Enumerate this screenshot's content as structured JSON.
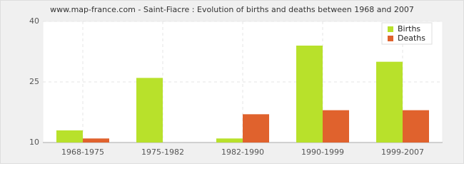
{
  "chart_data": {
    "type": "bar",
    "title": "www.map-france.com - Saint-Fiacre : Evolution of births and deaths between 1968 and 2007",
    "categories": [
      "1968-1975",
      "1975-1982",
      "1982-1990",
      "1990-1999",
      "1999-2007"
    ],
    "series": [
      {
        "name": "Births",
        "color": "#b8e12b",
        "values": [
          13,
          26,
          11,
          34,
          30
        ]
      },
      {
        "name": "Deaths",
        "color": "#e0622d",
        "values": [
          11,
          10,
          17,
          18,
          18
        ]
      }
    ],
    "ylim": [
      10,
      40
    ],
    "yticks": [
      10,
      25,
      40
    ],
    "grid": true,
    "legend": "top-right"
  }
}
